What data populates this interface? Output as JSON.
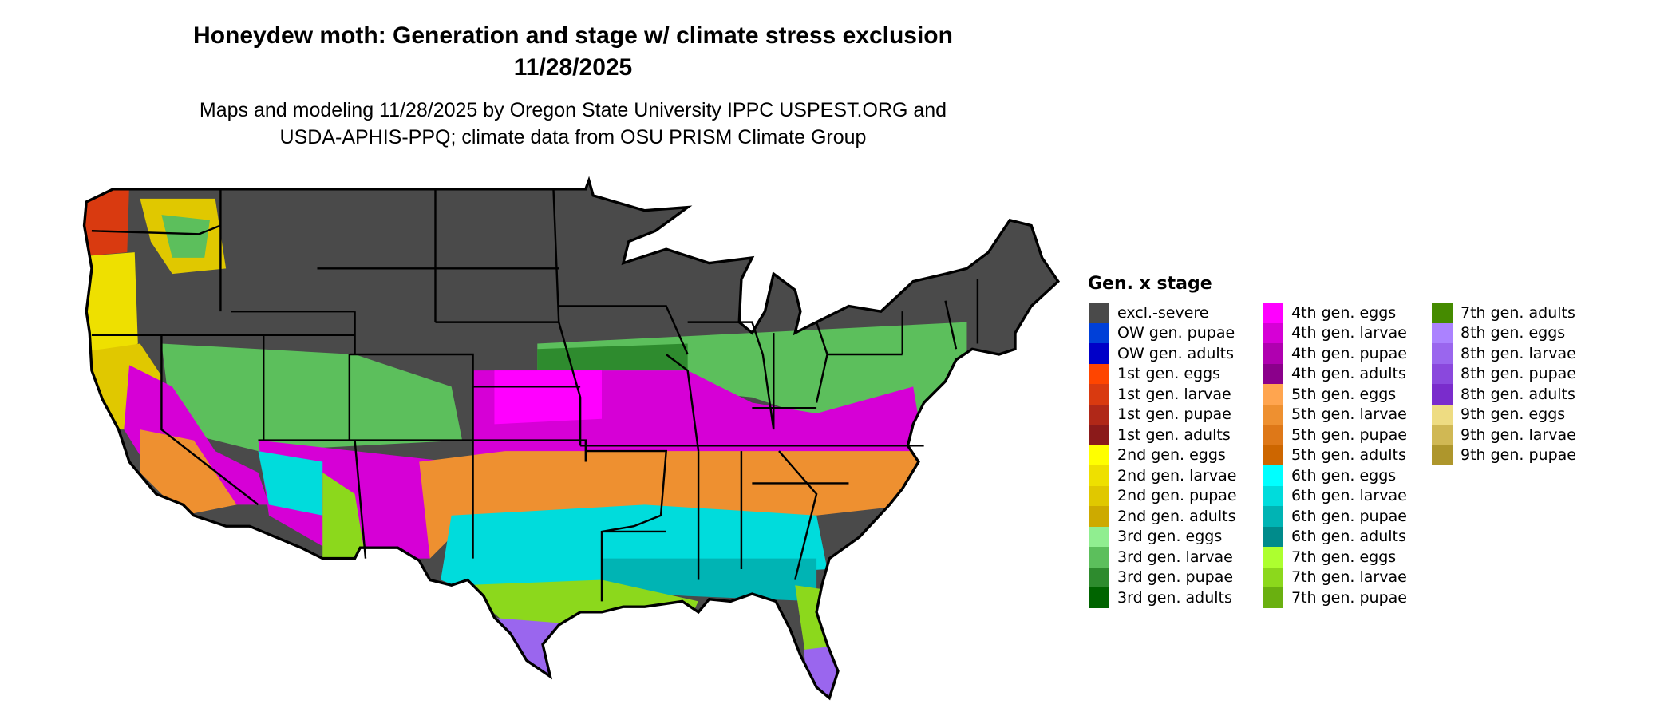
{
  "title": "Honeydew moth: Generation and stage w/ climate stress exclusion",
  "date": "11/28/2025",
  "subtitle_line1": "Maps and modeling 11/28/2025 by Oregon State University IPPC USPEST.ORG and",
  "subtitle_line2": "USDA-APHIS-PPQ; climate data from OSU PRISM Climate Group",
  "map": {
    "region": "Contiguous United States",
    "excluded_color": "#4a4a4a",
    "state_borders_color": "#000000"
  },
  "legend": {
    "title": "Gen. x stage",
    "items": [
      {
        "label": "excl.-severe",
        "color": "#4a4a4a"
      },
      {
        "label": "OW gen. pupae",
        "color": "#0040d8"
      },
      {
        "label": "OW gen. adults",
        "color": "#0000c8"
      },
      {
        "label": "1st gen. eggs",
        "color": "#ff4500"
      },
      {
        "label": "1st gen. larvae",
        "color": "#d93a10"
      },
      {
        "label": "1st gen. pupae",
        "color": "#b02818"
      },
      {
        "label": "1st gen. adults",
        "color": "#8b1a1a"
      },
      {
        "label": "2nd gen. eggs",
        "color": "#ffff00"
      },
      {
        "label": "2nd gen. larvae",
        "color": "#eee000"
      },
      {
        "label": "2nd gen. pupae",
        "color": "#e0c800"
      },
      {
        "label": "2nd gen. adults",
        "color": "#cdaa00"
      },
      {
        "label": "3rd gen. eggs",
        "color": "#90ee90"
      },
      {
        "label": "3rd gen. larvae",
        "color": "#5cbf5c"
      },
      {
        "label": "3rd gen. pupae",
        "color": "#2e8b2e"
      },
      {
        "label": "3rd gen. adults",
        "color": "#006400"
      },
      {
        "label": "4th gen. eggs",
        "color": "#ff00ff"
      },
      {
        "label": "4th gen. larvae",
        "color": "#d600d6"
      },
      {
        "label": "4th gen. pupae",
        "color": "#b000b0"
      },
      {
        "label": "4th gen. adults",
        "color": "#8b008b"
      },
      {
        "label": "5th gen. eggs",
        "color": "#ffa54f"
      },
      {
        "label": "5th gen. larvae",
        "color": "#ee9030"
      },
      {
        "label": "5th gen. pupae",
        "color": "#de7818"
      },
      {
        "label": "5th gen. adults",
        "color": "#cd6600"
      },
      {
        "label": "6th gen. eggs",
        "color": "#00ffff"
      },
      {
        "label": "6th gen. larvae",
        "color": "#00dcdc"
      },
      {
        "label": "6th gen. pupae",
        "color": "#00b4b4"
      },
      {
        "label": "6th gen. adults",
        "color": "#008b8b"
      },
      {
        "label": "7th gen. eggs",
        "color": "#adff2f"
      },
      {
        "label": "7th gen. larvae",
        "color": "#8cd81c"
      },
      {
        "label": "7th gen. pupae",
        "color": "#6ab010"
      },
      {
        "label": "7th gen. adults",
        "color": "#458b00"
      },
      {
        "label": "8th gen. eggs",
        "color": "#ab82ff"
      },
      {
        "label": "8th gen. larvae",
        "color": "#9a66ee"
      },
      {
        "label": "8th gen. pupae",
        "color": "#8a48dd"
      },
      {
        "label": "8th gen. adults",
        "color": "#7a2ccc"
      },
      {
        "label": "9th gen. eggs",
        "color": "#eedc82"
      },
      {
        "label": "9th gen. larvae",
        "color": "#d0b854"
      },
      {
        "label": "9th gen. pupae",
        "color": "#ae962c"
      }
    ]
  }
}
